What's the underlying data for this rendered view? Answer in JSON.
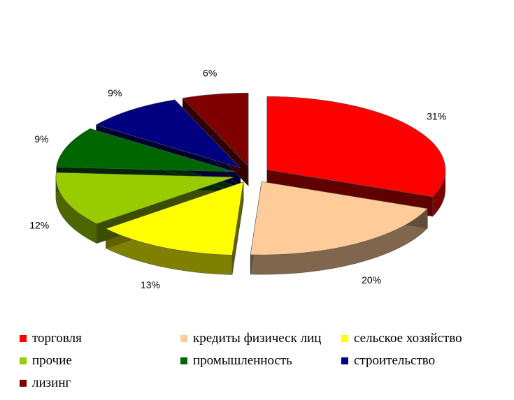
{
  "chart_data": {
    "type": "pie",
    "title": "",
    "three_d": true,
    "exploded": true,
    "legend_position": "bottom",
    "categories": [
      "торговля",
      "кредиты физическ лиц",
      "сельское хозяйство",
      "прочие",
      "промышленность",
      "строительство",
      "лизинг"
    ],
    "values": [
      31,
      20,
      13,
      12,
      9,
      9,
      6
    ],
    "data_labels": [
      "31%",
      "20%",
      "13%",
      "12%",
      "9%",
      "9%",
      "6%"
    ],
    "colors": [
      "#ff0000",
      "#ffcc99",
      "#ffff00",
      "#99cc00",
      "#006600",
      "#000080",
      "#800000"
    ]
  }
}
